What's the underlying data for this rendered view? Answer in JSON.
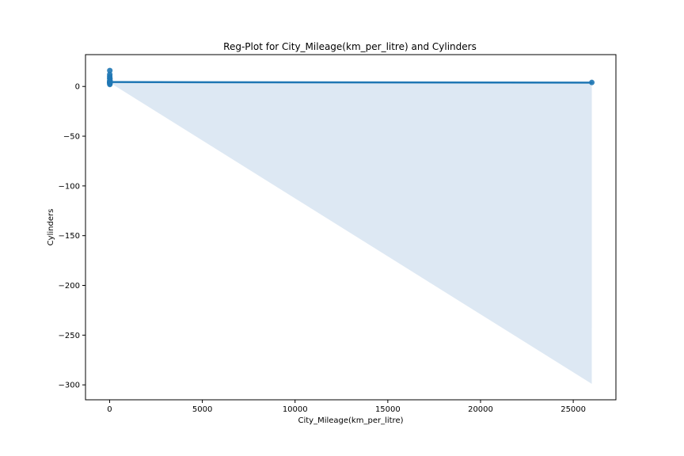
{
  "chart_data": {
    "type": "scatter",
    "title": "Reg-Plot for City_Mileage(km_per_litre) and Cylinders",
    "xlabel": "City_Mileage(km_per_litre)",
    "ylabel": "Cylinders",
    "xlim": [
      -1300,
      27300
    ],
    "ylim": [
      -315,
      32
    ],
    "grid": false,
    "x_ticks": [
      0,
      5000,
      10000,
      15000,
      20000,
      25000
    ],
    "y_ticks": [
      0,
      -50,
      -100,
      -150,
      -200,
      -250,
      -300
    ],
    "y_tick_labels": [
      "0",
      "−50",
      "−100",
      "−150",
      "−200",
      "−250",
      "−300"
    ],
    "colors": {
      "points": "#1f77b4",
      "line": "#1f77b4",
      "band": "#dde8f3"
    },
    "points": [
      {
        "x": 5,
        "y": 4
      },
      {
        "x": 8,
        "y": 4
      },
      {
        "x": 10,
        "y": 3
      },
      {
        "x": 12,
        "y": 6
      },
      {
        "x": 7,
        "y": 8
      },
      {
        "x": 6,
        "y": 10
      },
      {
        "x": 9,
        "y": 12
      },
      {
        "x": 11,
        "y": 16
      },
      {
        "x": 4,
        "y": 5
      },
      {
        "x": 13,
        "y": 2
      },
      {
        "x": 15,
        "y": 4
      },
      {
        "x": 18,
        "y": 4
      },
      {
        "x": 20,
        "y": 6
      },
      {
        "x": 14,
        "y": 3
      },
      {
        "x": 16,
        "y": 8
      },
      {
        "x": 22,
        "y": 4
      },
      {
        "x": 26000,
        "y": 4
      }
    ],
    "regression": {
      "x_start": 0,
      "x_end": 26000,
      "y_start": 4.4,
      "y_end": 3.8,
      "ci_upper_start": 5,
      "ci_upper_end": 4.5,
      "ci_lower_start": 4,
      "ci_lower_end": -299
    }
  }
}
